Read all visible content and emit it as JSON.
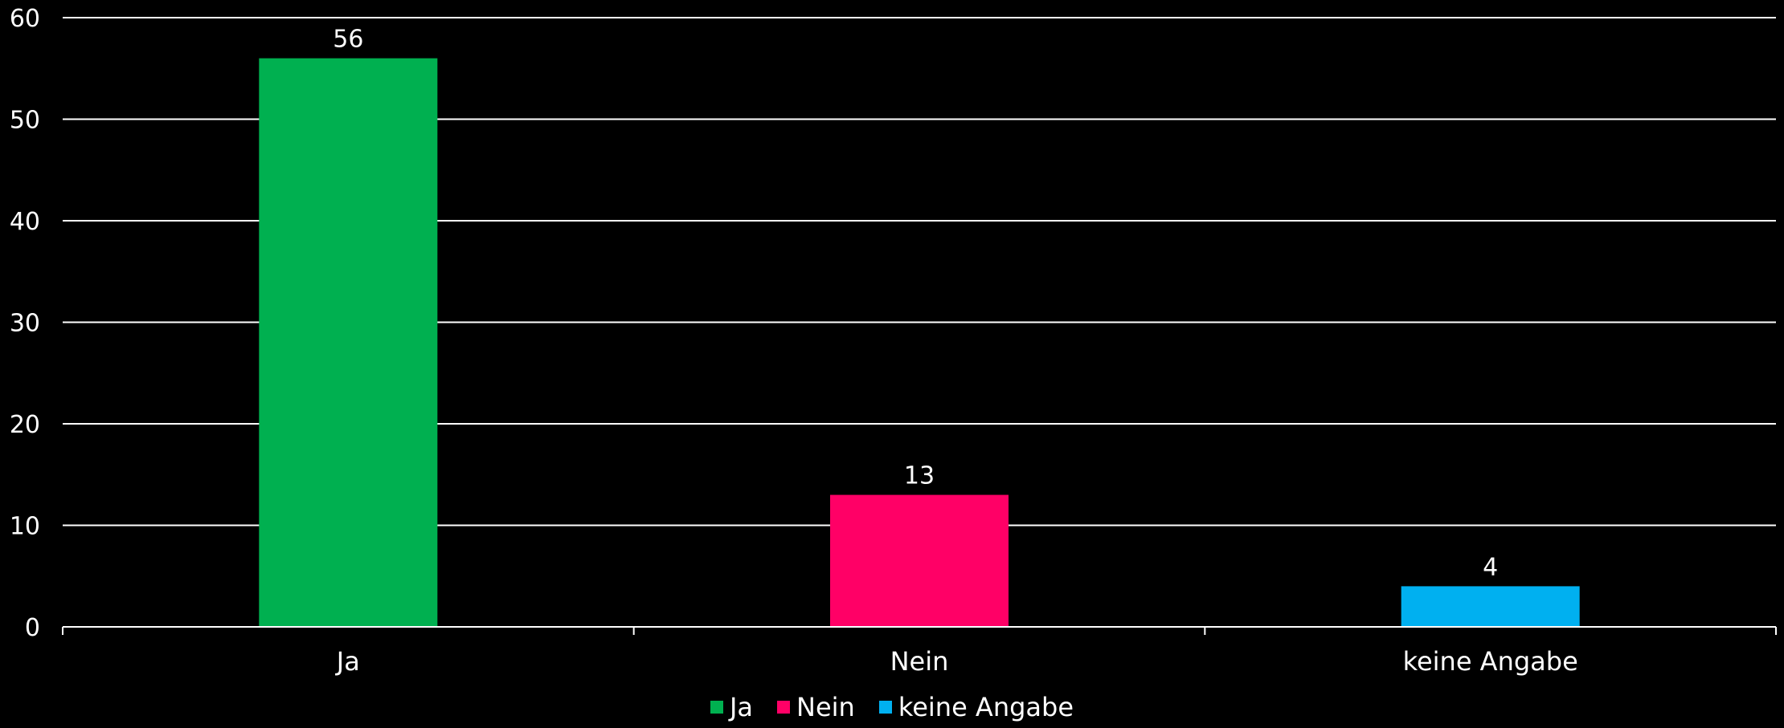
{
  "chart_data": {
    "type": "bar",
    "categories": [
      "Ja",
      "Nein",
      "keine Angabe"
    ],
    "values": [
      56,
      13,
      4
    ],
    "data_labels": [
      "56",
      "13",
      "4"
    ],
    "colors": [
      "#00B050",
      "#FF0066",
      "#00B0F0"
    ],
    "ylim": [
      0,
      60
    ],
    "yticks": [
      0,
      10,
      20,
      30,
      40,
      50,
      60
    ],
    "ytick_labels": [
      "0",
      "10",
      "20",
      "30",
      "40",
      "50",
      "60"
    ],
    "grid": true,
    "legend": {
      "position": "bottom",
      "entries": [
        "Ja",
        "Nein",
        "keine Angabe"
      ]
    },
    "title": "",
    "xlabel": "",
    "ylabel": ""
  }
}
